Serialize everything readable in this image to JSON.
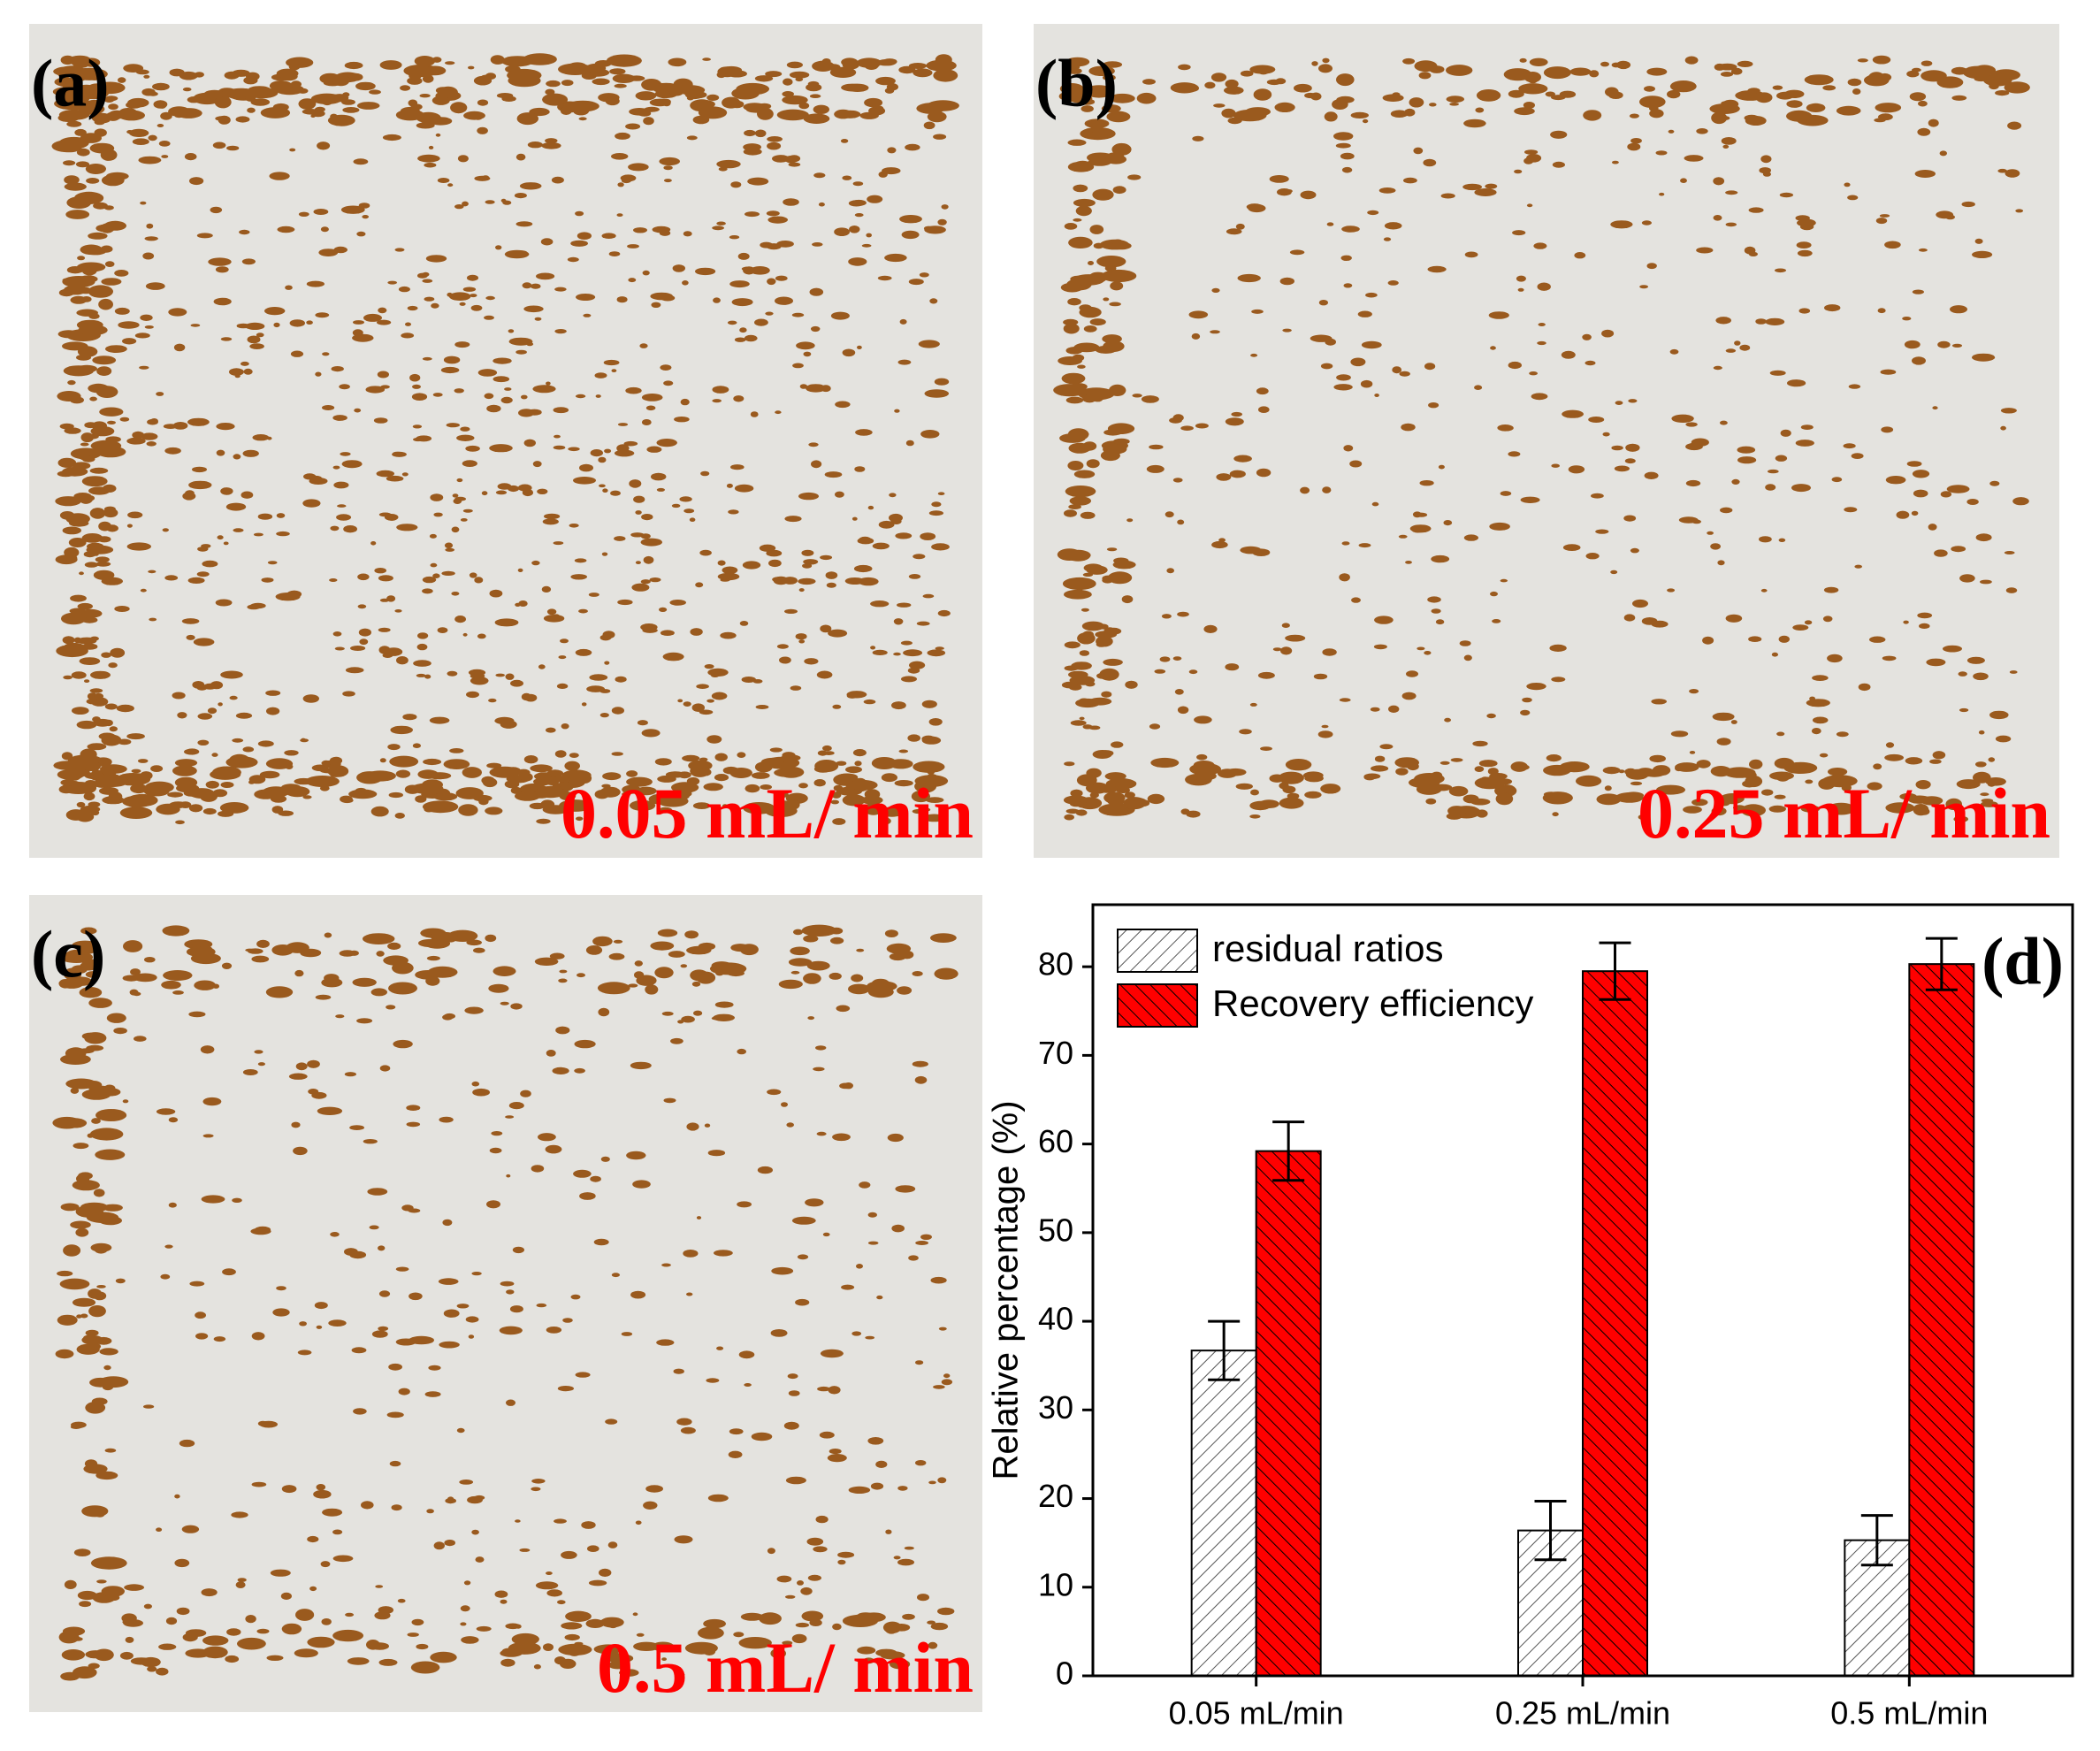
{
  "panels": [
    {
      "label": "(a)",
      "caption": "0.05 mL/ min"
    },
    {
      "label": "(b)",
      "caption": "0.25 mL/ min"
    },
    {
      "label": "(c)",
      "caption": "0.5 mL/ min"
    }
  ],
  "chart_data": {
    "type": "bar",
    "label": "(d)",
    "y_label": "Relative percentage (%)",
    "categories": [
      "0.05 mL/min",
      "0.25 mL/min",
      "0.5 mL/min"
    ],
    "series": [
      {
        "name": "residual ratios",
        "color": "#ffffff",
        "values": [
          36.7,
          16.4,
          15.3
        ],
        "errors": [
          3.3,
          3.3,
          2.8
        ]
      },
      {
        "name": "Recovery efficiency",
        "color": "#ff0000",
        "values": [
          59.2,
          79.5,
          80.3
        ],
        "errors": [
          3.3,
          3.2,
          2.9
        ]
      }
    ],
    "ylim": [
      0,
      87
    ],
    "yticks": [
      0,
      10,
      20,
      30,
      40,
      50,
      60,
      70,
      80
    ]
  }
}
